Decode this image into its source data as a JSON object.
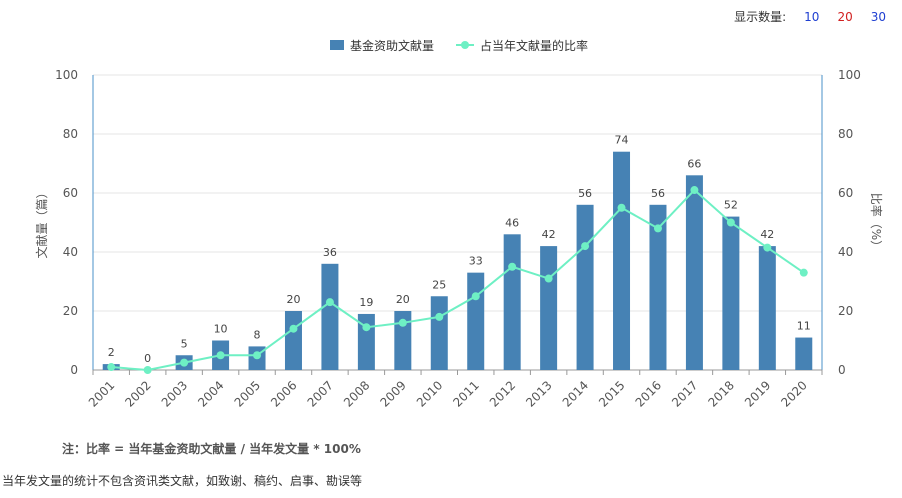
{
  "topbar": {
    "label": "显示数量:",
    "options": [
      {
        "label": "10",
        "color": "#1f3fd1"
      },
      {
        "label": "20",
        "color": "#d12020"
      },
      {
        "label": "30",
        "color": "#1f3fd1"
      }
    ]
  },
  "colors": {
    "bar": "#4682b4",
    "line": "#6ef0c4",
    "axis": "#4a90c8",
    "grid": "#e6e6e6",
    "text": "#555555"
  },
  "chart_data": {
    "type": "bar+line",
    "categories": [
      "2001",
      "2002",
      "2003",
      "2004",
      "2005",
      "2006",
      "2007",
      "2008",
      "2009",
      "2010",
      "2011",
      "2012",
      "2013",
      "2014",
      "2015",
      "2016",
      "2017",
      "2018",
      "2019",
      "2020"
    ],
    "series": [
      {
        "name": "基金资助文献量",
        "type": "bar",
        "axis": "left",
        "values": [
          2,
          0,
          5,
          10,
          8,
          20,
          36,
          19,
          20,
          25,
          33,
          46,
          42,
          56,
          74,
          56,
          66,
          52,
          42,
          11
        ]
      },
      {
        "name": "占当年文献量的比率",
        "type": "line",
        "axis": "right",
        "values": [
          1,
          0,
          2.5,
          5,
          5,
          14,
          23,
          14.5,
          16,
          18,
          25,
          35,
          31,
          42,
          55,
          48,
          61,
          50,
          41.5,
          33
        ]
      }
    ],
    "ylabel_left": "文献量（篇）",
    "ylabel_right": "比率（%）",
    "ylim_left": [
      0,
      100
    ],
    "ylim_right": [
      0,
      100
    ],
    "yticks": [
      0,
      20,
      40,
      60,
      80,
      100
    ],
    "legend_position": "top-center",
    "grid": true
  },
  "notes": {
    "formula": "注：比率 = 当年基金资助文献量 / 当年发文量 * 100%",
    "footnote": "当年发文量的统计不包含资讯类文献，如致谢、稿约、启事、勘误等"
  }
}
